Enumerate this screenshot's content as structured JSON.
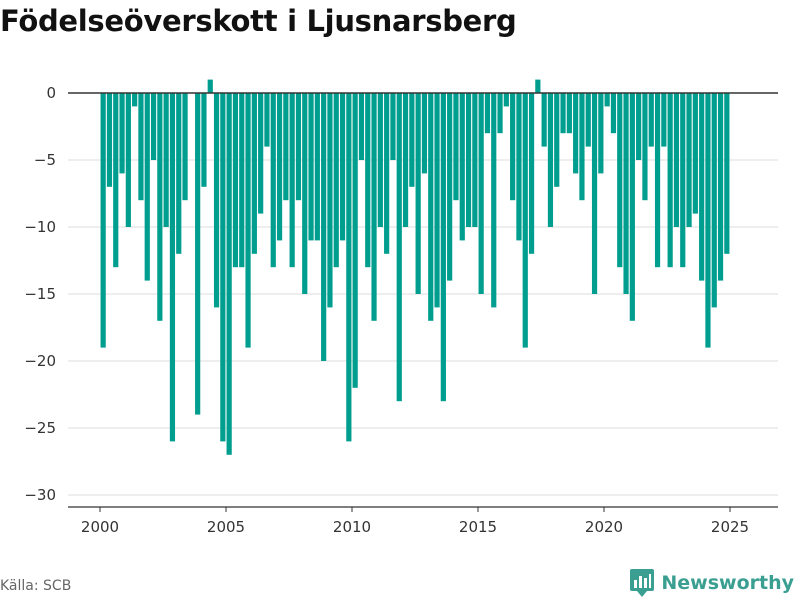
{
  "title": "Födelseöverskott i Ljusnarsberg",
  "source": "Källa: SCB",
  "brand": {
    "name": "Newsworthy",
    "icon": "newsworthy-logo-icon"
  },
  "colors": {
    "bar": "#009e8f",
    "zero_line": "#333333",
    "grid": "#dddddd",
    "axis": "#333333",
    "brand": "#3a9f90"
  },
  "chart_data": {
    "type": "bar",
    "title": "Födelseöverskott i Ljusnarsberg",
    "xlabel": "",
    "ylabel": "",
    "frequency": "quarterly",
    "start": "2000-Q1",
    "ylim": [
      -31,
      2
    ],
    "yticks": [
      0,
      -5,
      -10,
      -15,
      -20,
      -25,
      -30
    ],
    "ytick_labels": [
      "0",
      "−5",
      "−10",
      "−15",
      "−20",
      "−25",
      "−30"
    ],
    "xticks": [
      2000,
      2005,
      2010,
      2015,
      2020,
      2025
    ],
    "grid": true,
    "values": [
      -19,
      -7,
      -13,
      -6,
      -10,
      -1,
      -8,
      -14,
      -5,
      -17,
      -10,
      -26,
      -12,
      -8,
      0,
      -24,
      -7,
      1,
      -16,
      -26,
      -27,
      -13,
      -13,
      -19,
      -12,
      -9,
      -4,
      -13,
      -11,
      -8,
      -13,
      -8,
      -15,
      -11,
      -11,
      -20,
      -16,
      -13,
      -11,
      -26,
      -22,
      -5,
      -13,
      -17,
      -10,
      -12,
      -5,
      -23,
      -10,
      -7,
      -15,
      -6,
      -17,
      -16,
      -23,
      -14,
      -8,
      -11,
      -10,
      -10,
      -15,
      -3,
      -16,
      -3,
      -1,
      -8,
      -11,
      -19,
      -12,
      1,
      -4,
      -10,
      -7,
      -3,
      -3,
      -6,
      -8,
      -4,
      -15,
      -6,
      -1,
      -3,
      -13,
      -15,
      -17,
      -5,
      -8,
      -4,
      -13,
      -4,
      -13,
      -10,
      -13,
      -10,
      -9,
      -14,
      -19,
      -16,
      -14,
      -12
    ]
  }
}
